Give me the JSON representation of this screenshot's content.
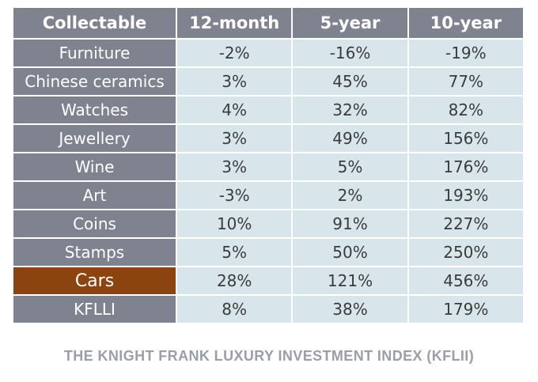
{
  "chart_data": {
    "type": "table",
    "columns": [
      "Collectable",
      "12-month",
      "5-year",
      "10-year"
    ],
    "rows": [
      {
        "name": "Furniture",
        "values": [
          "-2%",
          "-16%",
          "-19%"
        ],
        "highlight": false
      },
      {
        "name": "Chinese ceramics",
        "values": [
          "3%",
          "45%",
          "77%"
        ],
        "highlight": false
      },
      {
        "name": "Watches",
        "values": [
          "4%",
          "32%",
          "82%"
        ],
        "highlight": false
      },
      {
        "name": "Jewellery",
        "values": [
          "3%",
          "49%",
          "156%"
        ],
        "highlight": false
      },
      {
        "name": "Wine",
        "values": [
          "3%",
          "5%",
          "176%"
        ],
        "highlight": false
      },
      {
        "name": "Art",
        "values": [
          "-3%",
          "2%",
          "193%"
        ],
        "highlight": false
      },
      {
        "name": "Coins",
        "values": [
          "10%",
          "91%",
          "227%"
        ],
        "highlight": false
      },
      {
        "name": "Stamps",
        "values": [
          "5%",
          "50%",
          "250%"
        ],
        "highlight": false
      },
      {
        "name": "Cars",
        "values": [
          "28%",
          "121%",
          "456%"
        ],
        "highlight": true
      },
      {
        "name": "KFLLI",
        "values": [
          "8%",
          "38%",
          "179%"
        ],
        "highlight": false
      }
    ],
    "caption": "THE KNIGHT FRANK LUXURY INVESTMENT INDEX (KFLII)",
    "colors": {
      "header_bg": "#7f8390",
      "cell_bg": "#d8e6ec",
      "highlight_bg": "#8b4310",
      "caption": "#9a9ea6"
    }
  }
}
